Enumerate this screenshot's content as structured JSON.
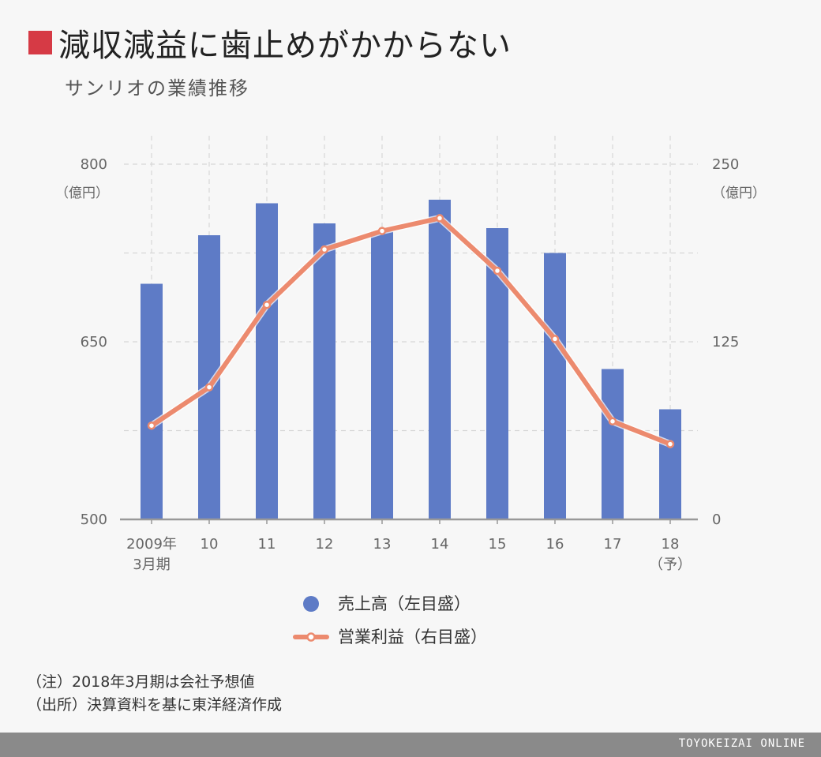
{
  "header": {
    "title": "減収減益に歯止めがかからない",
    "subtitle": "サンリオの業績推移"
  },
  "colors": {
    "accent": "#d63a45",
    "bar": "#5e7bc6",
    "line": "#ec8a6e",
    "grid": "#d7d7d7",
    "axis": "#999999"
  },
  "chart_data": {
    "type": "bar",
    "categories": [
      "2009年\n3月期",
      "10",
      "11",
      "12",
      "13",
      "14",
      "15",
      "16",
      "17",
      "18\n（予）"
    ],
    "series": [
      {
        "name": "売上高（左目盛）",
        "type": "bar",
        "axis": "left",
        "values": [
          699,
          740,
          767,
          750,
          743,
          770,
          746,
          725,
          627,
          593
        ]
      },
      {
        "name": "営業利益（右目盛）",
        "type": "line",
        "axis": "right",
        "values": [
          66,
          93,
          151,
          190,
          203,
          212,
          175,
          127,
          69,
          53
        ]
      }
    ],
    "y_left": {
      "ylim": [
        500,
        800
      ],
      "ticks": [
        500,
        650,
        800
      ],
      "unit": "（億円）"
    },
    "y_right": {
      "ylim": [
        0,
        250
      ],
      "ticks": [
        0,
        125,
        250
      ],
      "unit": "（億円）"
    },
    "grid": true,
    "legend": "bottom"
  },
  "notes": [
    "（注）2018年3月期は会社予想値",
    "（出所）決算資料を基に東洋経済作成"
  ],
  "footer": {
    "brand": "TOYOKEIZAI ONLINE"
  }
}
